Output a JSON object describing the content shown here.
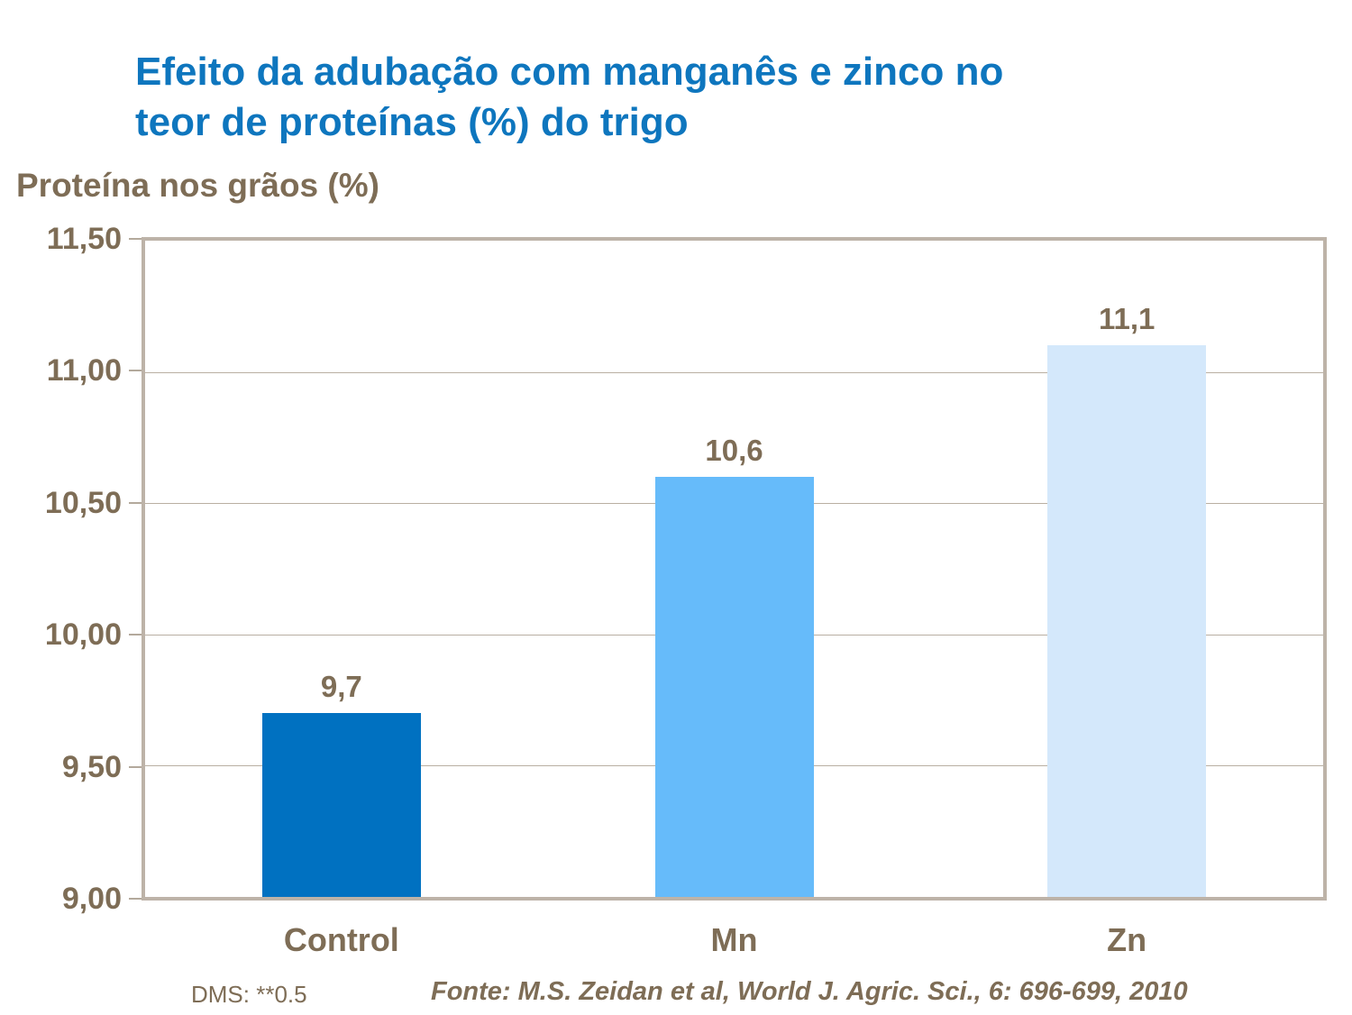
{
  "title": {
    "line1": "Efeito da adubação com manganês e zinco no",
    "line2": "teor de proteínas (%) do trigo"
  },
  "axis_title": "Proteína nos grãos (%)",
  "footer": {
    "dms": "DMS: **0.5",
    "source": "Fonte: M.S. Zeidan et al, World J. Agric. Sci., 6: 696-699, 2010"
  },
  "colors": {
    "title_blue": "#0E76BE",
    "text_brown": "#7E6D56",
    "plot_border": "#BDB3A8",
    "gridline": "#B9AFA2",
    "background": "#FFFFFF"
  },
  "chart_data": {
    "type": "bar",
    "title": "Efeito da adubação com manganês e zinco no teor de proteínas (%) do trigo",
    "ylabel": "Proteína nos grãos (%)",
    "xlabel": "",
    "categories": [
      "Control",
      "Mn",
      "Zn"
    ],
    "values": [
      9.7,
      10.6,
      11.1
    ],
    "value_labels": [
      "9,7",
      "10,6",
      "11,1"
    ],
    "bar_colors": [
      "#0071C1",
      "#66BBFA",
      "#D4E8FB"
    ],
    "ylim": [
      9.0,
      11.5
    ],
    "yticks": {
      "values": [
        11.5,
        11.0,
        10.5,
        10.0,
        9.5,
        9.0
      ],
      "labels": [
        "11,50",
        "11,00",
        "10,50",
        "10,00",
        "9,50",
        "9,00"
      ]
    },
    "grid": true,
    "legend": false,
    "note": "DMS: **0.5",
    "source": "Fonte: M.S. Zeidan et al, World J. Agric. Sci., 6: 696-699, 2010"
  }
}
